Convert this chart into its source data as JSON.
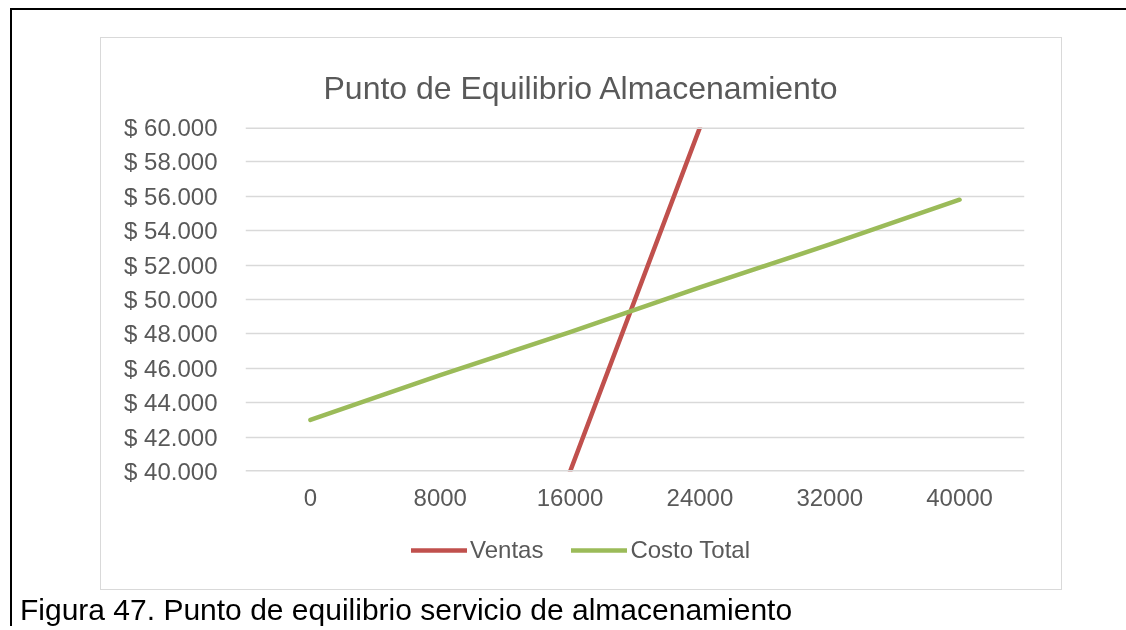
{
  "chart_data": {
    "type": "line",
    "title": "Punto de Equilibrio Almacenamiento",
    "categories": [
      "0",
      "8000",
      "16000",
      "24000",
      "32000",
      "40000"
    ],
    "series": [
      {
        "name": "Ventas",
        "color": "#c0504d",
        "values": [
          null,
          null,
          40000,
          60000,
          null,
          null
        ]
      },
      {
        "name": "Costo Total",
        "color": "#9bbb59",
        "values": [
          43000,
          45600,
          48100,
          50700,
          53200,
          55800
        ]
      }
    ],
    "ylim": [
      40000,
      60000
    ],
    "yticks": [
      {
        "value": 40000,
        "label": "$ 40.000"
      },
      {
        "value": 42000,
        "label": "$ 42.000"
      },
      {
        "value": 44000,
        "label": "$ 44.000"
      },
      {
        "value": 46000,
        "label": "$ 46.000"
      },
      {
        "value": 48000,
        "label": "$ 48.000"
      },
      {
        "value": 50000,
        "label": "$ 50.000"
      },
      {
        "value": 52000,
        "label": "$ 52.000"
      },
      {
        "value": 54000,
        "label": "$ 54.000"
      },
      {
        "value": 56000,
        "label": "$ 56.000"
      },
      {
        "value": 58000,
        "label": "$ 58.000"
      },
      {
        "value": 60000,
        "label": "$ 60.000"
      }
    ],
    "grid": "y",
    "legend": "bottom",
    "annotations": [
      "Figura 47. Punto de equilibrio servicio de almacenamiento"
    ]
  }
}
